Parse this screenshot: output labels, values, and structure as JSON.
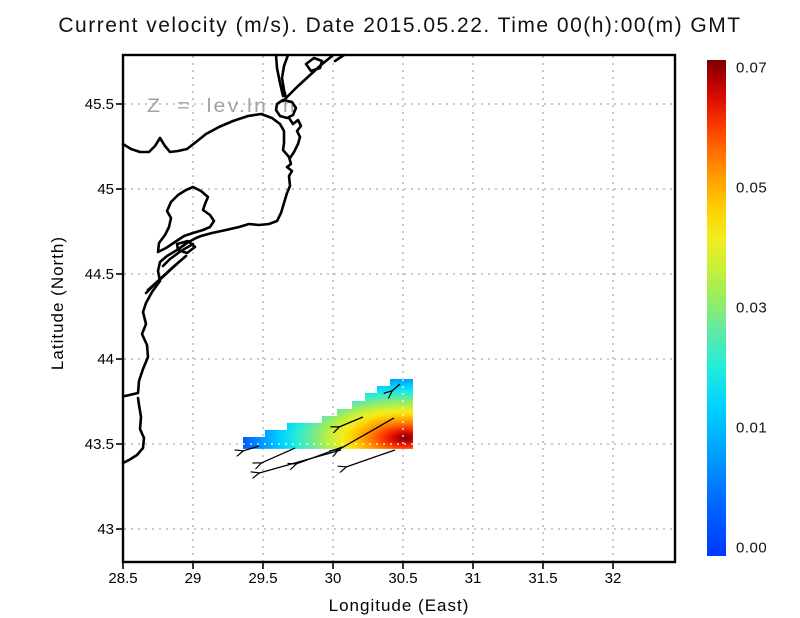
{
  "title": "Current velocity (m/s). Date 2015.05.22. Time 00(h):00(m) GMT",
  "annotation": "Z = lev.ln n",
  "chart_data": {
    "type": "heatmap",
    "title": "Current velocity (m/s). Date 2015.05.22. Time 00(h):00(m) GMT",
    "xlabel": "Longitude (East)",
    "ylabel": "Latitude (North)",
    "units": "m/s",
    "xlim": [
      28.5,
      32.44
    ],
    "ylim": [
      42.81,
      45.79
    ],
    "x_ticks": [
      28.5,
      29,
      29.5,
      30,
      30.5,
      31,
      31.5,
      32
    ],
    "y_ticks": [
      45.5,
      45,
      44.5,
      44,
      43.5,
      43
    ],
    "grid": true,
    "value_range": [
      0.0,
      0.07
    ],
    "colorbar": {
      "position": "right",
      "tick_labels": [
        "0.07",
        "0.05",
        "0.03",
        "0.01",
        "0.00"
      ],
      "tick_values": [
        0.07,
        0.05,
        0.03,
        0.01,
        0.0
      ],
      "colormap_stops": [
        [
          0,
          "#0038ff"
        ],
        [
          10,
          "#0064ff"
        ],
        [
          20,
          "#009cff"
        ],
        [
          30,
          "#00d2ff"
        ],
        [
          38,
          "#22ecdc"
        ],
        [
          46,
          "#66e9a0"
        ],
        [
          52,
          "#98ed60"
        ],
        [
          58,
          "#c8f038"
        ],
        [
          64,
          "#f0ee20"
        ],
        [
          70,
          "#ffd000"
        ],
        [
          76,
          "#ffa000"
        ],
        [
          82,
          "#ff6a00"
        ],
        [
          87,
          "#f93800"
        ],
        [
          92,
          "#de0e00"
        ],
        [
          96,
          "#b20000"
        ],
        [
          100,
          "#7a0000"
        ]
      ]
    },
    "plume": {
      "description": "stair-stepped current-velocity patch off the coast; near 0 m/s (blue) on its NW edge grading to ~0.07 m/s (dark red) near 30.53E 43.53N",
      "bottom_lat": 43.471,
      "steps": [
        {
          "lon0": 29.357,
          "lon1": 29.514,
          "top_lat": 43.541
        },
        {
          "lon0": 29.514,
          "lon1": 29.671,
          "top_lat": 43.582
        },
        {
          "lon0": 29.671,
          "lon1": 29.921,
          "top_lat": 43.624
        },
        {
          "lon0": 29.921,
          "lon1": 30.029,
          "top_lat": 43.665
        },
        {
          "lon0": 30.029,
          "lon1": 30.136,
          "top_lat": 43.706
        },
        {
          "lon0": 30.136,
          "lon1": 30.229,
          "top_lat": 43.753
        },
        {
          "lon0": 30.229,
          "lon1": 30.314,
          "top_lat": 43.8
        },
        {
          "lon0": 30.314,
          "lon1": 30.407,
          "top_lat": 43.841
        },
        {
          "lon0": 30.407,
          "lon1": 30.571,
          "top_lat": 43.882
        }
      ],
      "hotspot": {
        "lon": 30.53,
        "lat": 43.53,
        "value": 0.07
      }
    },
    "current_vectors": [
      {
        "from": [
          29.471,
          43.488
        ],
        "to": [
          29.357,
          43.459
        ]
      },
      {
        "from": [
          29.729,
          43.476
        ],
        "to": [
          29.486,
          43.388
        ]
      },
      {
        "from": [
          30.057,
          43.465
        ],
        "to": [
          29.471,
          43.329
        ]
      },
      {
        "from": [
          30.064,
          43.482
        ],
        "to": [
          29.736,
          43.382
        ]
      },
      {
        "from": [
          30.214,
          43.659
        ],
        "to": [
          30.043,
          43.6
        ]
      },
      {
        "from": [
          30.436,
          43.653
        ],
        "to": [
          30.036,
          43.465
        ]
      },
      {
        "from": [
          30.443,
          43.465
        ],
        "to": [
          30.093,
          43.365
        ]
      },
      {
        "from": [
          30.479,
          43.853
        ],
        "to": [
          30.421,
          43.812
        ]
      }
    ]
  },
  "map": {
    "region": "western Black Sea coast",
    "coastline_paths": [
      "M123,144 L131,149 L140,152 L149,152 L155,146 L160,138 L165,146 L170,152 L178,151 L187,149 L196,142 L206,134 L219,127 L233,121 L248,116 L261,114 L272,118 L280,124 L284,131 L284,143 L283,150 L289,157 L291,164 L287,167 L292,171 L289,176 L290,186 L287,193 L284,203 L281,213 L277,221 L269,224 L259,225 L249,224 L239,227 L226,230 L212,233 L201,236 L196,238 L187,243 L177,250 L167,256 L160,262 L158,271 L160,281 L152,292 L146,303 L143,312 L146,324 L142,334 L147,345 L148,357 L143,369 L139,381 L138,393 L125,396 M138,398 L139,405 L141,417 L140,429 L144,438 L143,448 L137,455 L129,460 L123,463",
      "M276,55 L277,68 L280,83 L283,96 M288,55 L284,66 L282,78 L284,90 L286,98",
      "M283,100 L277,104 L276,110 L280,116 L287,118 L293,115 L296,108 L292,102 Z",
      "M289,118 L293,124 L298,120 L301,126 L297,131 L300,137 L298,144 L294,152 L290,158",
      "M332,56 L321,65 L309,76 L297,87 L287,97 L283,101",
      "M306,64 L314,58 L322,61 L320,68 L311,71 Z M335,61 L344,55",
      "M186,190 L193,187 L201,191 L208,197 L205,204 L203,210 L210,215 L214,221 L210,227 L203,230 L193,233 L184,236 L175,242 L166,248 L158,252 L159,243 L165,235 L169,227 L171,218 L167,211 L171,202 L178,195 Z",
      "M177,244 L188,241 L195,247 L187,253 L178,250 Z",
      "M193,244 L181,251 L170,259 L163,266",
      "M186,256 L172,268 L158,281 L148,290 M180,261 L167,273 L154,285 L146,293"
    ]
  },
  "colors": {
    "coast": "#000000",
    "grid": "#aaaaaa",
    "annotation": "#a3a3a3",
    "frame": "#000000",
    "arrow": "#000000",
    "background": "#ffffff"
  }
}
